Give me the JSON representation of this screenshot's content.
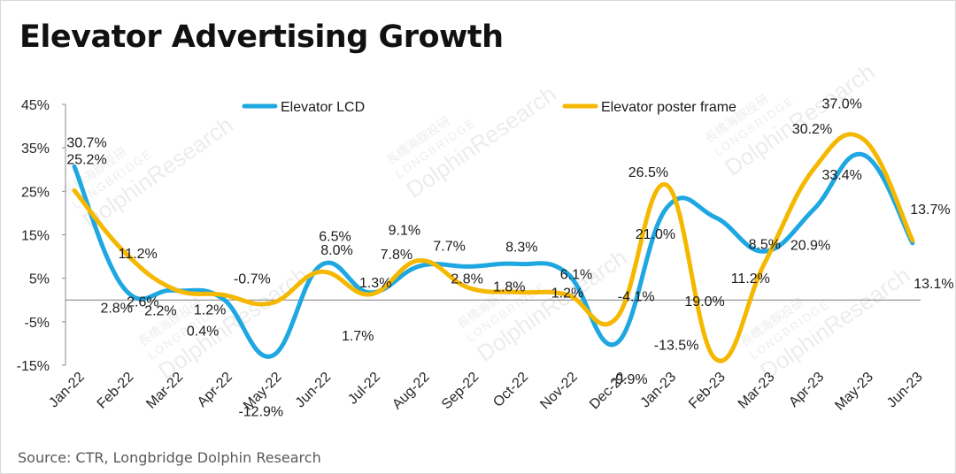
{
  "title": "Elevator Advertising Growth",
  "source": "Source: CTR, Longbridge Dolphin Research",
  "watermark": {
    "cn": "長橋海豚投研",
    "en1": "LONGBRIDGE",
    "en2": "DolphinResearch"
  },
  "chart_data": {
    "type": "line",
    "title": "Elevator Advertising Growth",
    "xlabel": "",
    "ylabel": "",
    "ylim": [
      -15,
      45
    ],
    "yticks": [
      -15,
      -5,
      5,
      15,
      25,
      35,
      45
    ],
    "ytick_labels": [
      "-15%",
      "-5%",
      "5%",
      "15%",
      "25%",
      "35%",
      "45%"
    ],
    "categories": [
      "Jan-22",
      "Feb-22",
      "Mar-22",
      "Apr-22",
      "May-22",
      "Jun-22",
      "Jul-22",
      "Aug-22",
      "Sep-22",
      "Oct-22",
      "Nov-22",
      "Dec-22",
      "Jan-23",
      "Feb-23",
      "Mar-23",
      "Apr-23",
      "May-23",
      "Jun-23"
    ],
    "legend_position": "top",
    "series": [
      {
        "name": "Elevator LCD",
        "color": "#1ea7e1",
        "values": [
          30.7,
          2.8,
          2.2,
          0.4,
          -12.9,
          8.0,
          1.7,
          7.8,
          7.7,
          8.3,
          6.1,
          -9.9,
          21.0,
          19.0,
          11.2,
          20.9,
          33.4,
          13.1
        ],
        "labels": [
          "30.7%",
          "2.8%",
          "2.2%",
          "0.4%",
          "-12.9%",
          "8.0%",
          "1.7%",
          "7.8%",
          "7.7%",
          "8.3%",
          "6.1%",
          "-9.9%",
          "21.0%",
          "19.0%",
          "11.2%",
          "20.9%",
          "33.4%",
          "13.1%"
        ]
      },
      {
        "name": "Elevator poster frame",
        "color": "#f5b800",
        "values": [
          25.2,
          11.2,
          2.6,
          1.2,
          -0.7,
          6.5,
          1.3,
          9.1,
          2.8,
          1.8,
          1.2,
          -4.1,
          26.5,
          -13.5,
          8.5,
          30.2,
          37.0,
          13.7
        ],
        "labels": [
          "25.2%",
          "11.2%",
          "2.6%",
          "1.2%",
          "-0.7%",
          "6.5%",
          "1.3%",
          "9.1%",
          "2.8%",
          "1.8%",
          "1.2%",
          "-4.1%",
          "26.5%",
          "-13.5%",
          "8.5%",
          "30.2%",
          "37.0%",
          "13.7%"
        ]
      }
    ]
  }
}
